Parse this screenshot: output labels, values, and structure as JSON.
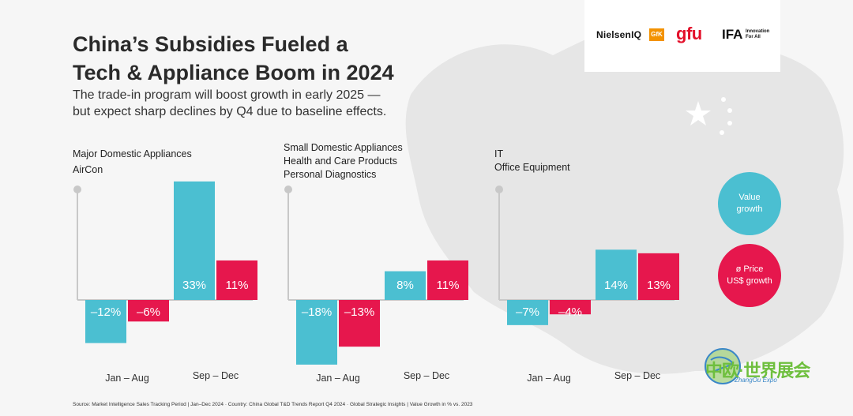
{
  "title_lines": [
    "China’s Subsidies Fueled a",
    "Tech & Appliance Boom in 2024"
  ],
  "subtitle_lines": [
    "The trade-in program will boost growth in early 2025 —",
    "but expect sharp declines by Q4 due to baseline effects."
  ],
  "logos": {
    "nielsen": "NielsenIQ",
    "gfk": "GfK",
    "gfu": "gfu",
    "ifa": "IFA",
    "ifa_tag": "Innovation For All"
  },
  "colors": {
    "value_growth": "#4bbfd1",
    "price_growth": "#e6174d",
    "axis": "#c8c8c8"
  },
  "legend": {
    "value_growth": [
      "Value",
      "growth"
    ],
    "price_growth": [
      "ø Price",
      "US$ growth"
    ]
  },
  "chart_data": [
    {
      "type": "bar",
      "category_lines": [
        "Major Domestic Appliances",
        "AirCon"
      ],
      "categories": [
        "Jan – Aug",
        "Sep – Dec"
      ],
      "series": [
        {
          "name": "Value growth",
          "values": [
            -12,
            33
          ],
          "labels": [
            "–12%",
            "33%"
          ]
        },
        {
          "name": "ø Price US$ growth",
          "values": [
            -6,
            11
          ],
          "labels": [
            "–6%",
            "11%"
          ]
        }
      ],
      "unit": "%"
    },
    {
      "type": "bar",
      "category_lines": [
        "Small Domestic Appliances",
        "Health and Care Products",
        "Personal Diagnostics"
      ],
      "categories": [
        "Jan – Aug",
        "Sep – Dec"
      ],
      "series": [
        {
          "name": "Value growth",
          "values": [
            -18,
            8
          ],
          "labels": [
            "–18%",
            "8%"
          ]
        },
        {
          "name": "ø Price US$ growth",
          "values": [
            -13,
            11
          ],
          "labels": [
            "–13%",
            "11%"
          ]
        }
      ],
      "unit": "%"
    },
    {
      "type": "bar",
      "category_lines": [
        "IT",
        "Office Equipment"
      ],
      "categories": [
        "Jan – Aug",
        "Sep – Dec"
      ],
      "series": [
        {
          "name": "Value growth",
          "values": [
            -7,
            14
          ],
          "labels": [
            "–7%",
            "14%"
          ]
        },
        {
          "name": "ø Price US$ growth",
          "values": [
            -4,
            13
          ],
          "labels": [
            "–4%",
            "13%"
          ]
        }
      ],
      "unit": "%"
    }
  ],
  "source_note": "Source: Market Intelligence Sales Tracking Period | Jan–Dec 2024 · Country: China Global T&D Trends Report Q4 2024 · Global Strategic Insights | Value Growth in % vs. 2023",
  "expo": {
    "name": "中欧·世界展会",
    "sub": "ZhangOu Expo"
  }
}
